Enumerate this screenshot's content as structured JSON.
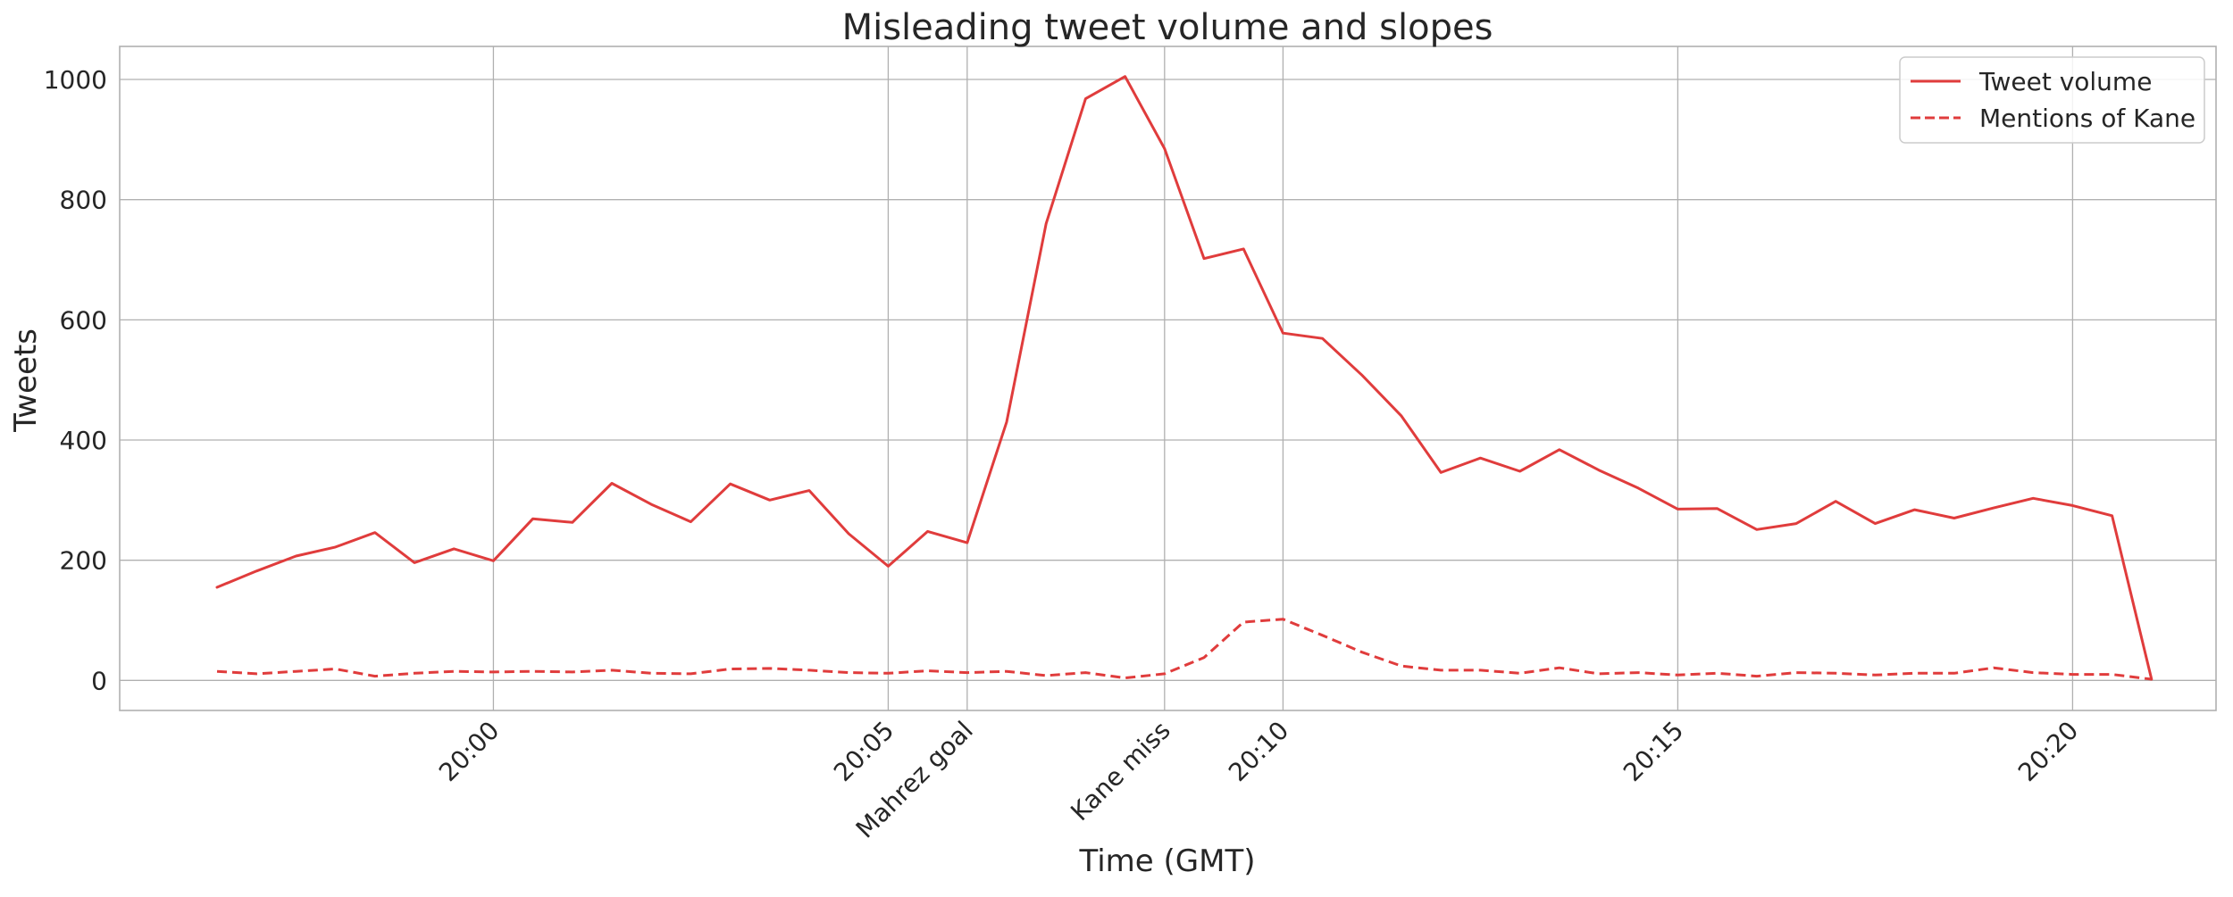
{
  "chart_data": {
    "type": "line",
    "title": "Misleading tweet volume and slopes",
    "xlabel": "Time (GMT)",
    "ylabel": "Tweets",
    "x_unit": "minutes",
    "xlim": [
      "19:55:16",
      "20:21:49"
    ],
    "ylim": [
      -50,
      1055
    ],
    "grid": true,
    "legend_placement": "top-right",
    "colors": {
      "series": "#e03c3c",
      "grid": "#b0b0b0",
      "frame": "#b0b0b0",
      "text": "#262626"
    },
    "x_ticks": [
      {
        "x": "20:00",
        "label": "20:00"
      },
      {
        "x": "20:05",
        "label": "20:05"
      },
      {
        "x": "20:06",
        "label": "Mahrez goal"
      },
      {
        "x": "20:08:30",
        "label": "Kane miss"
      },
      {
        "x": "20:10",
        "label": "20:10"
      },
      {
        "x": "20:15",
        "label": "20:15"
      },
      {
        "x": "20:20",
        "label": "20:20"
      }
    ],
    "y_ticks": [
      0,
      200,
      400,
      600,
      800,
      1000
    ],
    "x": [
      "19:56:30",
      "19:57:00",
      "19:57:30",
      "19:58:00",
      "19:58:30",
      "19:59:00",
      "19:59:30",
      "20:00:00",
      "20:00:30",
      "20:01:00",
      "20:01:30",
      "20:02:00",
      "20:02:30",
      "20:03:00",
      "20:03:30",
      "20:04:00",
      "20:04:30",
      "20:05:00",
      "20:05:30",
      "20:06:00",
      "20:06:30",
      "20:07:00",
      "20:07:30",
      "20:08:00",
      "20:08:30",
      "20:09:00",
      "20:09:30",
      "20:10:00",
      "20:10:30",
      "20:11:00",
      "20:11:30",
      "20:12:00",
      "20:12:30",
      "20:13:00",
      "20:13:30",
      "20:14:00",
      "20:14:30",
      "20:15:00",
      "20:15:30",
      "20:16:00",
      "20:16:30",
      "20:17:00",
      "20:17:30",
      "20:18:00",
      "20:18:30",
      "20:19:00",
      "20:19:30",
      "20:20:00",
      "20:20:30",
      "20:21:00"
    ],
    "series": [
      {
        "name": "Tweet volume",
        "style": "solid",
        "values": [
          155,
          182,
          207,
          222,
          246,
          196,
          219,
          199,
          269,
          263,
          328,
          293,
          264,
          327,
          300,
          316,
          244,
          190,
          248,
          229,
          430,
          760,
          968,
          1005,
          885,
          702,
          718,
          578,
          569,
          508,
          440,
          346,
          370,
          348,
          384,
          350,
          320,
          285,
          286,
          251,
          261,
          298,
          261,
          284,
          270,
          287,
          303,
          291,
          274,
          2
        ]
      },
      {
        "name": "Mentions of Kane",
        "style": "dashed",
        "values": [
          15,
          11,
          15,
          19,
          7,
          12,
          15,
          14,
          15,
          14,
          17,
          12,
          11,
          19,
          20,
          17,
          13,
          12,
          16,
          13,
          15,
          8,
          13,
          4,
          11,
          38,
          97,
          102,
          75,
          47,
          24,
          17,
          17,
          12,
          21,
          11,
          13,
          9,
          12,
          7,
          13,
          12,
          9,
          12,
          12,
          21,
          13,
          10,
          10,
          2
        ]
      }
    ]
  }
}
